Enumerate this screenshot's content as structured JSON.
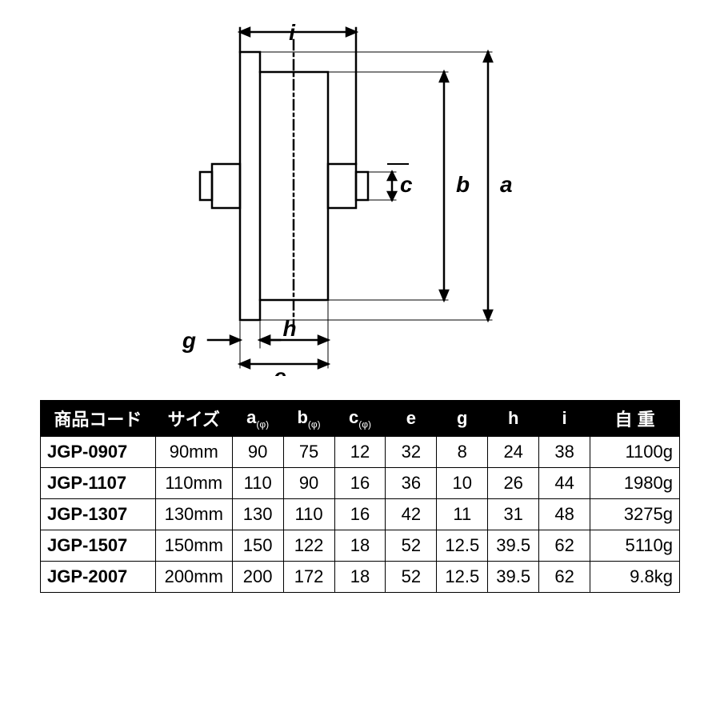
{
  "diagram": {
    "labels": {
      "a": "a",
      "b": "b",
      "c": "c",
      "e": "e",
      "g": "g",
      "h": "h",
      "i": "i"
    },
    "stroke": "#000000",
    "stroke_width": 2.5,
    "font_size": 28,
    "font_weight": "700"
  },
  "table": {
    "header_bg": "#000000",
    "header_fg": "#ffffff",
    "border": "#000000",
    "columns": [
      {
        "key": "code",
        "label": "商品コード",
        "width": "18%"
      },
      {
        "key": "size",
        "label": "サイズ",
        "width": "12%"
      },
      {
        "key": "a",
        "label": "a",
        "sub": "(φ)",
        "width": "8%"
      },
      {
        "key": "b",
        "label": "b",
        "sub": "(φ)",
        "width": "8%"
      },
      {
        "key": "c",
        "label": "c",
        "sub": "(φ)",
        "width": "8%"
      },
      {
        "key": "e",
        "label": "e",
        "width": "8%"
      },
      {
        "key": "g",
        "label": "g",
        "width": "8%"
      },
      {
        "key": "h",
        "label": "h",
        "width": "8%"
      },
      {
        "key": "i",
        "label": "i",
        "width": "8%"
      },
      {
        "key": "wt",
        "label": "自 重",
        "width": "14%"
      }
    ],
    "rows": [
      {
        "code": "JGP-0907",
        "size": "90mm",
        "a": "90",
        "b": "75",
        "c": "12",
        "e": "32",
        "g": "8",
        "h": "24",
        "i": "38",
        "wt": "1100g"
      },
      {
        "code": "JGP-1107",
        "size": "110mm",
        "a": "110",
        "b": "90",
        "c": "16",
        "e": "36",
        "g": "10",
        "h": "26",
        "i": "44",
        "wt": "1980g"
      },
      {
        "code": "JGP-1307",
        "size": "130mm",
        "a": "130",
        "b": "110",
        "c": "16",
        "e": "42",
        "g": "11",
        "h": "31",
        "i": "48",
        "wt": "3275g"
      },
      {
        "code": "JGP-1507",
        "size": "150mm",
        "a": "150",
        "b": "122",
        "c": "18",
        "e": "52",
        "g": "12.5",
        "h": "39.5",
        "i": "62",
        "wt": "5110g"
      },
      {
        "code": "JGP-2007",
        "size": "200mm",
        "a": "200",
        "b": "172",
        "c": "18",
        "e": "52",
        "g": "12.5",
        "h": "39.5",
        "i": "62",
        "wt": "9.8kg"
      }
    ]
  }
}
